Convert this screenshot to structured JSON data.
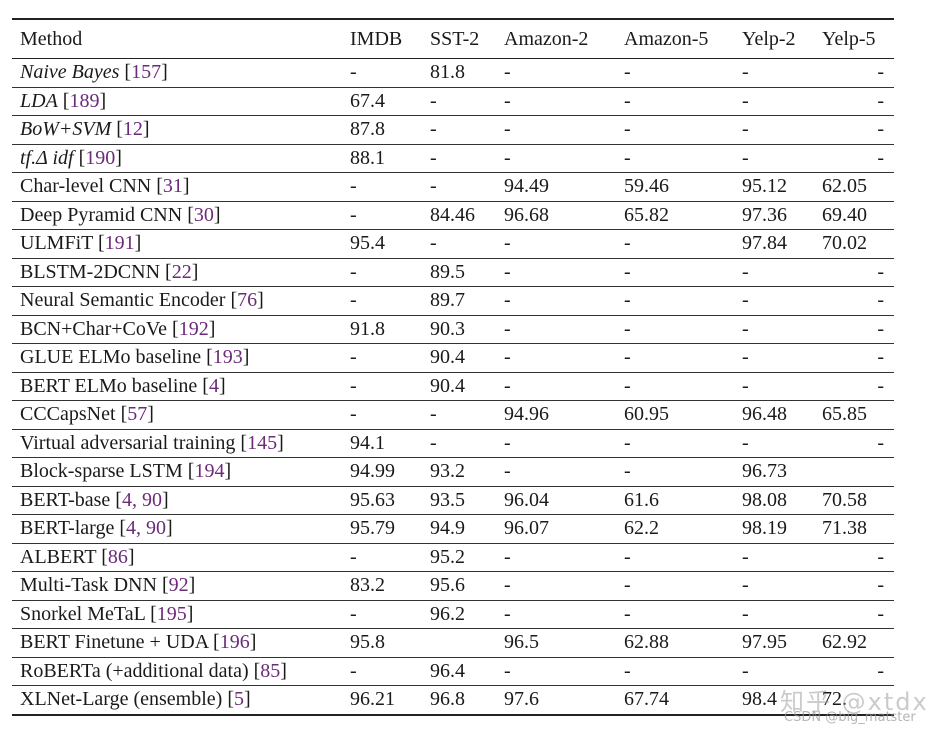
{
  "table": {
    "headers": [
      "Method",
      "IMDB",
      "SST-2",
      "Amazon-2",
      "Amazon-5",
      "Yelp-2",
      "Yelp-5"
    ],
    "rows": [
      {
        "method": "Naive Bayes",
        "italic": true,
        "cite": "157",
        "values": [
          "-",
          "81.8",
          "-",
          "-",
          "-",
          "-"
        ]
      },
      {
        "method": "LDA",
        "italic": true,
        "cite": "189",
        "values": [
          "67.4",
          "-",
          "-",
          "-",
          "-",
          "-"
        ]
      },
      {
        "method": "BoW+SVM",
        "italic": true,
        "cite": "12",
        "values": [
          "87.8",
          "-",
          "-",
          "-",
          "-",
          "-"
        ]
      },
      {
        "method": "tf.Δ idf",
        "italic": true,
        "cite": "190",
        "values": [
          "88.1",
          "-",
          "-",
          "-",
          "-",
          "-"
        ]
      },
      {
        "method": "Char-level CNN",
        "italic": false,
        "cite": "31",
        "values": [
          "-",
          "-",
          "94.49",
          "59.46",
          "95.12",
          "62.05"
        ]
      },
      {
        "method": "Deep Pyramid CNN",
        "italic": false,
        "cite": "30",
        "values": [
          "-",
          "84.46",
          "96.68",
          "65.82",
          "97.36",
          "69.40"
        ]
      },
      {
        "method": "ULMFiT",
        "italic": false,
        "cite": "191",
        "values": [
          "95.4",
          "-",
          "-",
          "-",
          "97.84",
          "70.02"
        ]
      },
      {
        "method": "BLSTM-2DCNN",
        "italic": false,
        "cite": "22",
        "values": [
          "-",
          "89.5",
          "-",
          "-",
          "-",
          "-"
        ]
      },
      {
        "method": "Neural Semantic Encoder",
        "italic": false,
        "cite": "76",
        "values": [
          "-",
          "89.7",
          "-",
          "-",
          "-",
          "-"
        ]
      },
      {
        "method": "BCN+Char+CoVe",
        "italic": false,
        "cite": "192",
        "values": [
          "91.8",
          "90.3",
          "-",
          "-",
          "-",
          "-"
        ]
      },
      {
        "method": "GLUE ELMo baseline",
        "italic": false,
        "cite": "193",
        "values": [
          "-",
          "90.4",
          "-",
          "-",
          "-",
          "-"
        ]
      },
      {
        "method": "BERT ELMo baseline",
        "italic": false,
        "cite": "4",
        "values": [
          "-",
          "90.4",
          "-",
          "-",
          "-",
          "-"
        ]
      },
      {
        "method": "CCCapsNet",
        "italic": false,
        "cite": "57",
        "values": [
          "-",
          "-",
          "94.96",
          "60.95",
          "96.48",
          "65.85"
        ]
      },
      {
        "method": "Virtual adversarial training",
        "italic": false,
        "cite": "145",
        "values": [
          "94.1",
          "-",
          "-",
          "-",
          "-",
          "-"
        ]
      },
      {
        "method": "Block-sparse LSTM",
        "italic": false,
        "cite": "194",
        "values": [
          "94.99",
          "93.2",
          "-",
          "-",
          "96.73",
          ""
        ]
      },
      {
        "method": "BERT-base",
        "italic": false,
        "cite": "4, 90",
        "values": [
          "95.63",
          "93.5",
          "96.04",
          "61.6",
          "98.08",
          "70.58"
        ]
      },
      {
        "method": "BERT-large",
        "italic": false,
        "cite": "4, 90",
        "values": [
          "95.79",
          "94.9",
          "96.07",
          "62.2",
          "98.19",
          "71.38"
        ]
      },
      {
        "method": "ALBERT",
        "italic": false,
        "cite": "86",
        "values": [
          "-",
          "95.2",
          "-",
          "-",
          "-",
          "-"
        ]
      },
      {
        "method": "Multi-Task DNN",
        "italic": false,
        "cite": "92",
        "values": [
          "83.2",
          "95.6",
          "-",
          "-",
          "-",
          "-"
        ]
      },
      {
        "method": "Snorkel MeTaL",
        "italic": false,
        "cite": "195",
        "values": [
          "-",
          "96.2",
          "-",
          "-",
          "-",
          "-"
        ]
      },
      {
        "method": "BERT Finetune + UDA",
        "italic": false,
        "cite": "196",
        "values": [
          "95.8",
          "",
          "96.5",
          "62.88",
          "97.95",
          "62.92"
        ]
      },
      {
        "method": "RoBERTa (+additional data)",
        "italic": false,
        "cite": "85",
        "values": [
          "-",
          "96.4",
          "-",
          "-",
          "-",
          "-"
        ]
      },
      {
        "method": "XLNet-Large (ensemble)",
        "italic": false,
        "cite": "5",
        "values": [
          "96.21",
          "96.8",
          "97.6",
          "67.74",
          "98.4",
          "72."
        ]
      }
    ]
  },
  "watermark": {
    "zhihu": "知乎 @xtdx",
    "csdn": "CSDN @big_matster"
  }
}
